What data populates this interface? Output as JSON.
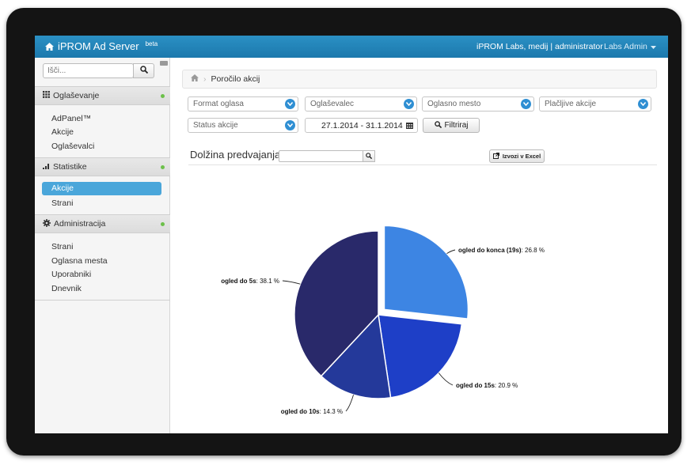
{
  "header": {
    "brand": "iPROM Ad Server",
    "brand_sup": "beta",
    "user_info": "iPROM Labs, medij | administrator",
    "account_menu": "Labs Admin"
  },
  "sidebar": {
    "search_placeholder": "Išči...",
    "sections": [
      {
        "title": "Oglaševanje",
        "icon": "grid-icon",
        "items": [
          "AdPanel™",
          "Akcije",
          "Oglaševalci"
        ]
      },
      {
        "title": "Statistike",
        "icon": "bar-chart-icon",
        "items": [
          "Akcije",
          "Strani"
        ],
        "active_item": "Akcije"
      },
      {
        "title": "Administracija",
        "icon": "gear-icon",
        "items": [
          "Strani",
          "Oglasna mesta",
          "Uporabniki",
          "Dnevnik"
        ]
      }
    ]
  },
  "breadcrumb": {
    "current": "Poročilo akcij"
  },
  "filters": {
    "format": "Format oglasa",
    "advertiser": "Oglaševalec",
    "placement": "Oglasno mesto",
    "paid_actions": "Plačljive akcije",
    "status": "Status akcije",
    "date_range": "27.1.2014 - 31.1.2014",
    "filter_button": "Filtriraj"
  },
  "chart_section": {
    "title": "Dolžina predvajanja",
    "export_button": "Izvozi v Excel"
  },
  "chart_data": {
    "type": "pie",
    "title": "",
    "series": [
      {
        "name": "ogled do konca (19s)",
        "value": 26.8,
        "value_label": ": 26.8 %",
        "color": "#3d85e3"
      },
      {
        "name": "ogled do 15s",
        "value": 20.9,
        "value_label": ": 20.9 %",
        "color": "#1e3fc7"
      },
      {
        "name": "ogled do 10s",
        "value": 14.3,
        "value_label": ": 14.3 %",
        "color": "#24399a"
      },
      {
        "name": "ogled do 5s",
        "value": 38.1,
        "value_label": ": 38.1 %",
        "color": "#29296a"
      }
    ],
    "sliced": "ogled do konca (19s)"
  }
}
